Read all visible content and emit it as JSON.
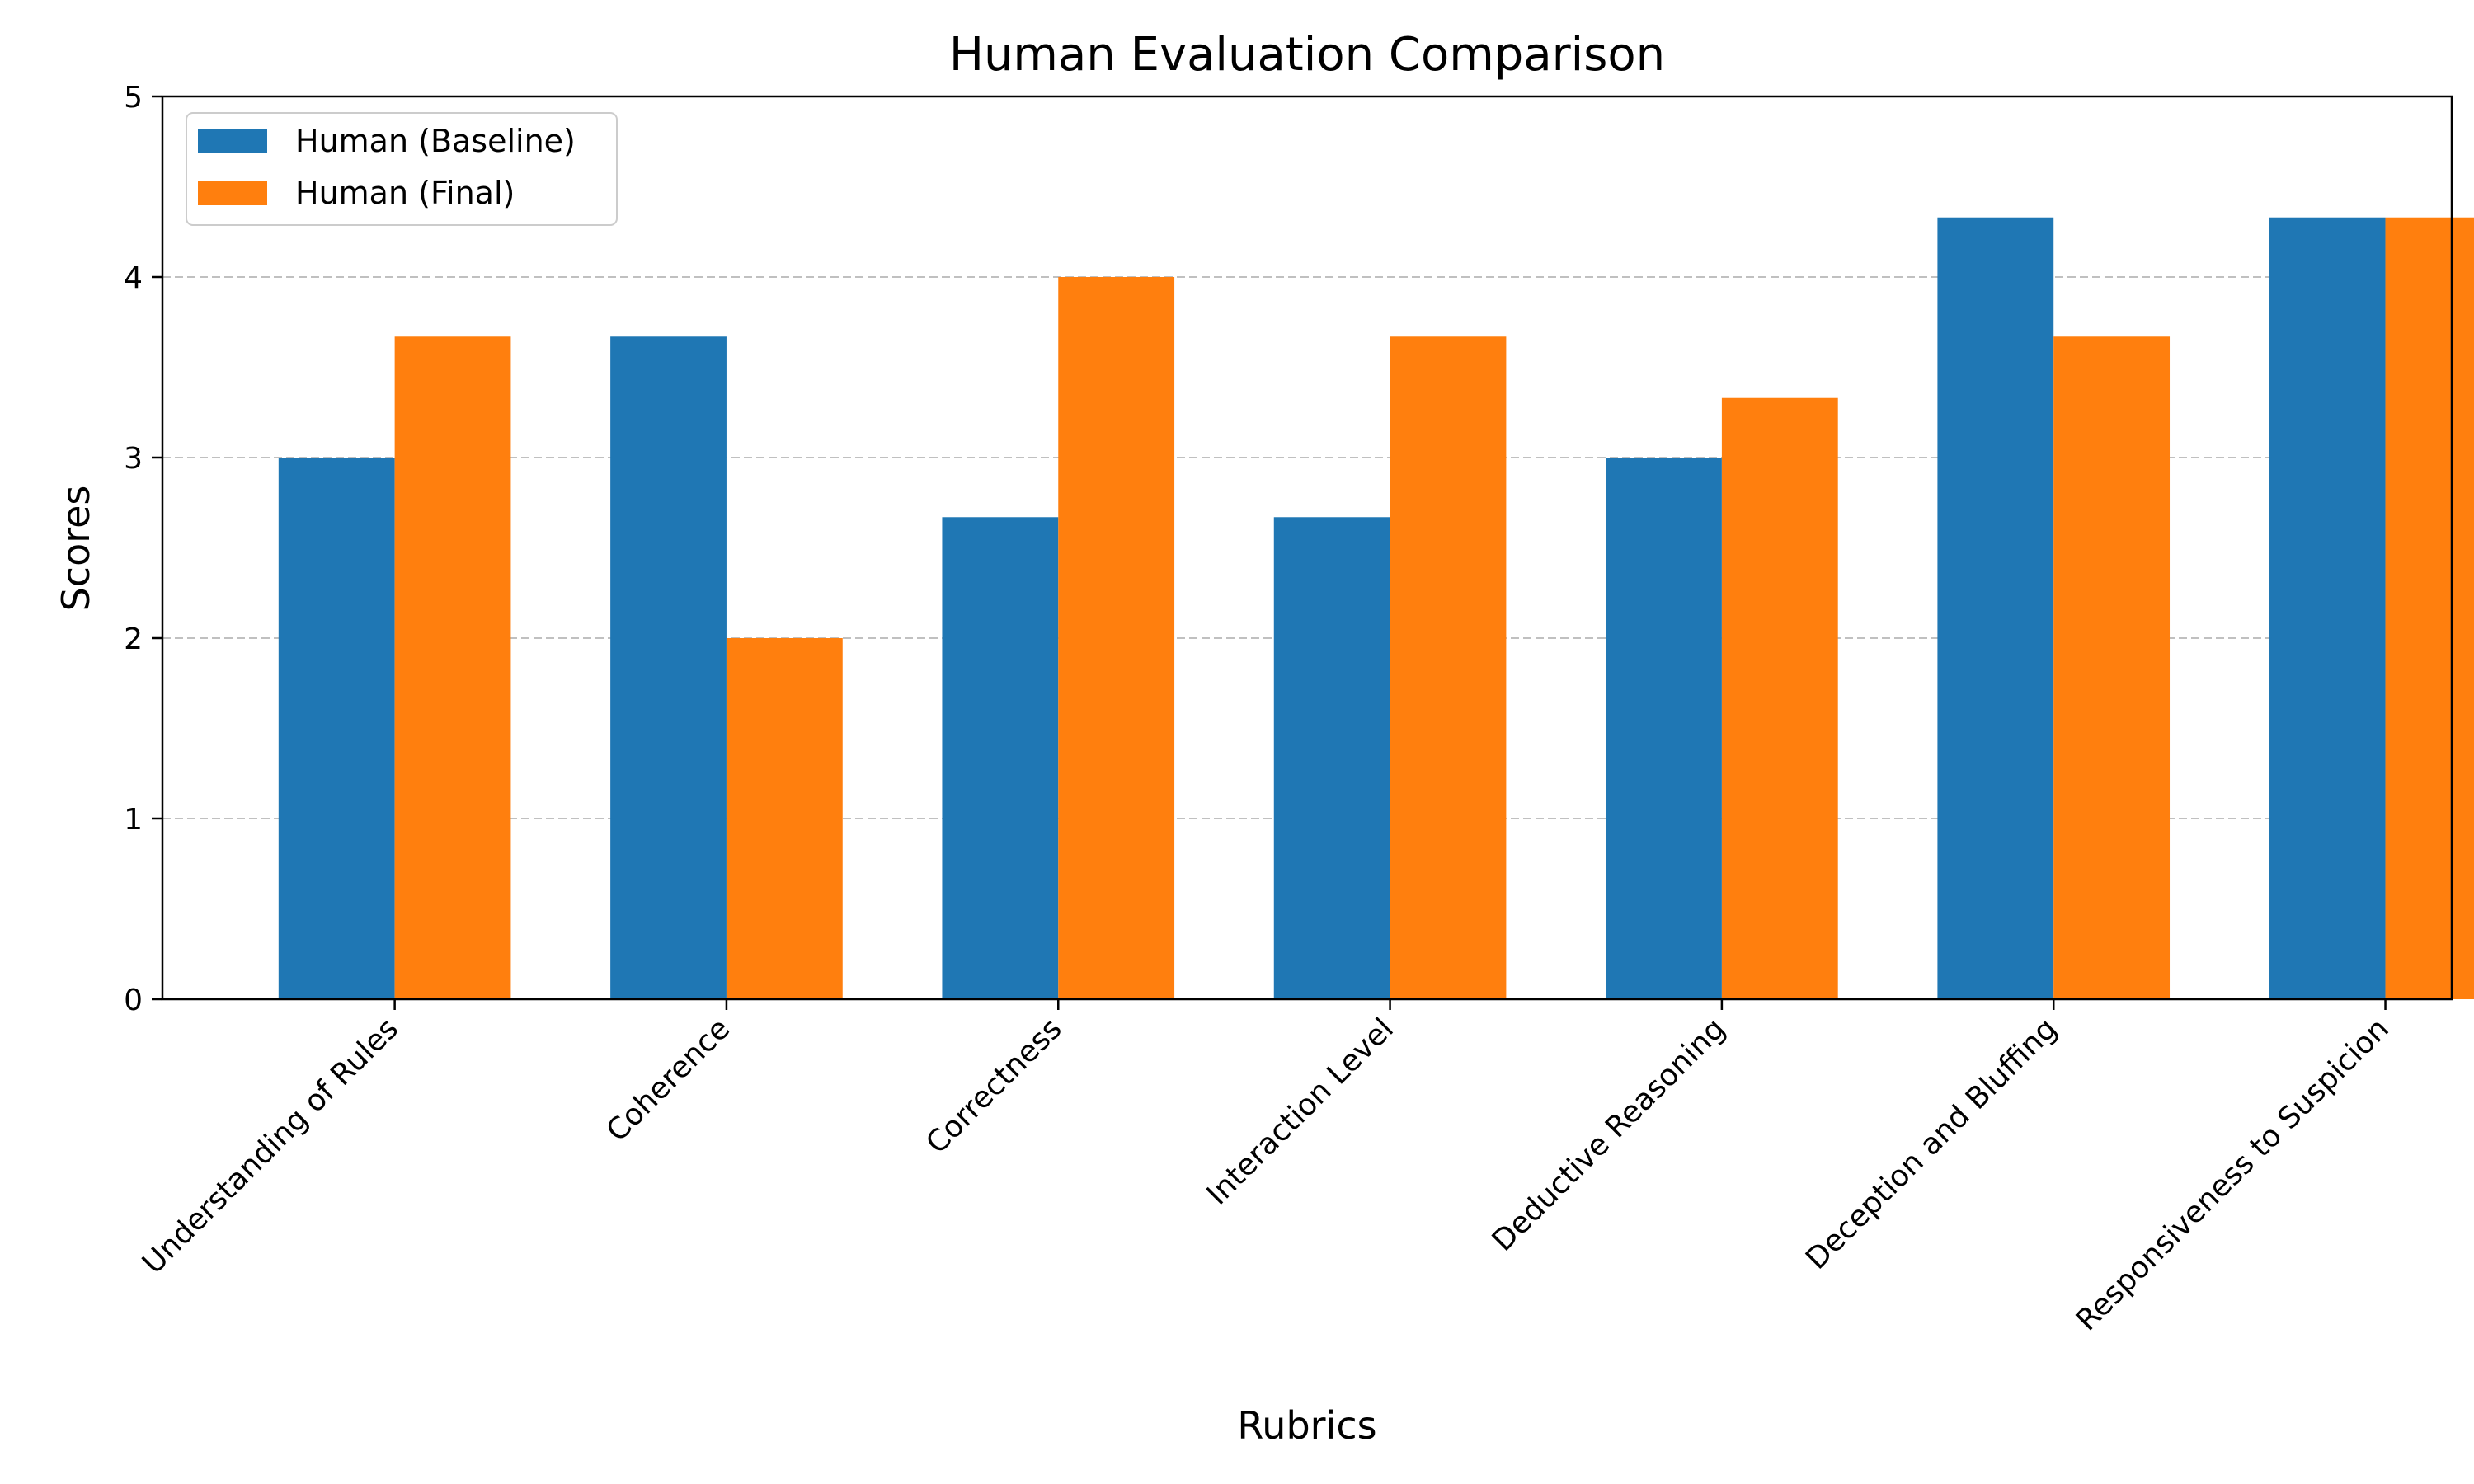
{
  "chart_data": {
    "type": "bar",
    "title": "Human Evaluation Comparison",
    "xlabel": "Rubrics",
    "ylabel": "Scores",
    "ylim": [
      0,
      5
    ],
    "yticks": [
      0,
      1,
      2,
      3,
      4,
      5
    ],
    "grid": "y-dashed",
    "legend_position": "top-left",
    "categories": [
      "Understanding of Rules",
      "Coherence",
      "Correctness",
      "Interaction Level",
      "Deductive Reasoning",
      "Deception and Bluffing",
      "Responsiveness to Suspicion"
    ],
    "series": [
      {
        "name": "Human (Baseline)",
        "color": "#1f77b4",
        "values": [
          3.0,
          3.67,
          2.67,
          2.67,
          3.0,
          4.33,
          4.33
        ]
      },
      {
        "name": "Human (Final)",
        "color": "#ff7f0e",
        "values": [
          3.67,
          2.0,
          4.0,
          3.67,
          3.33,
          3.67,
          4.33
        ]
      }
    ]
  }
}
